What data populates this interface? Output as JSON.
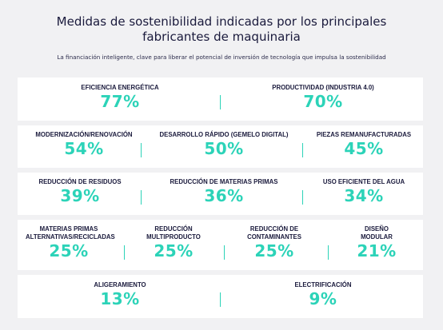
{
  "title_line1": "Medidas de sostenibilidad indicadas por los principales",
  "title_line2": "fabricantes de maquinaria",
  "subtitle": "La financiación inteligente, clave para liberar el potencial de inversión de tecnología que impulsa la sostenibilidad",
  "accent_color": "#2cd3b8",
  "chart_data": {
    "type": "table",
    "unit": "%",
    "rows": [
      [
        {
          "label": "EFICIENCIA ENERGÉTICA",
          "value": 77,
          "display": "77%"
        },
        {
          "label": "PRODUCTIVIDAD (INDUSTRIA 4.0)",
          "value": 70,
          "display": "70%"
        }
      ],
      [
        {
          "label": "MODERNIZACIÓN/RENOVACIÓN",
          "value": 54,
          "display": "54%"
        },
        {
          "label": "DESARROLLO RÁPIDO (GEMELO DIGITAL)",
          "value": 50,
          "display": "50%"
        },
        {
          "label": "PIEZAS REMANUFACTURADAS",
          "value": 45,
          "display": "45%"
        }
      ],
      [
        {
          "label": "REDUCCIÓN DE RESIDUOS",
          "value": 39,
          "display": "39%"
        },
        {
          "label": "REDUCCIÓN DE MATERIAS PRIMAS",
          "value": 36,
          "display": "36%"
        },
        {
          "label": "USO EFICIENTE DEL AGUA",
          "value": 34,
          "display": "34%"
        }
      ],
      [
        {
          "label": "MATERIAS PRIMAS ALTERNATIVAS/RECICLADAS",
          "value": 25,
          "display": "25%"
        },
        {
          "label": "REDUCCIÓN MULTIPRODUCTO",
          "value": 25,
          "display": "25%"
        },
        {
          "label": "REDUCCIÓN DE CONTAMINANTES",
          "value": 25,
          "display": "25%"
        },
        {
          "label": "DISEÑO MODULAR",
          "value": 21,
          "display": "21%"
        }
      ],
      [
        {
          "label": "ALIGERAMIENTO",
          "value": 13,
          "display": "13%"
        },
        {
          "label": "ELECTRIFICACIÓN",
          "value": 9,
          "display": "9%"
        }
      ]
    ]
  }
}
